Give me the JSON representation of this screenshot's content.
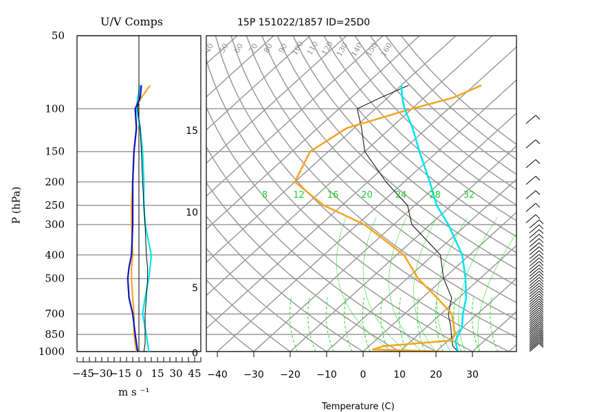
{
  "header": {
    "title": "15P 151022/1857 ID=25D0",
    "left_panel_title": "U/V Comps"
  },
  "chart_data": [
    {
      "type": "line",
      "title": "U/V Comps",
      "xlabel": "m s ⁻¹",
      "ylabel": "P (hPa)",
      "xlim": [
        -50,
        50
      ],
      "ylim": [
        1000,
        50
      ],
      "y_scale": "log",
      "x_tick_labels": [
        "-45",
        "-30",
        "-15",
        "0",
        "15",
        "30",
        "45"
      ],
      "y_tick_labels": [
        "50",
        "100",
        "150",
        "200",
        "250",
        "300",
        "400",
        "500",
        "700",
        "850",
        "1000"
      ],
      "series": [
        {
          "color": "#f5a623",
          "p": [
            1000,
            925,
            850,
            700,
            600,
            500,
            450,
            400,
            300,
            250,
            200,
            150,
            120,
            100,
            90,
            80
          ],
          "values": [
            -2,
            -3,
            -4,
            -4,
            -5,
            -6,
            -6,
            -5,
            -6,
            -6,
            -5,
            -4,
            -2,
            -3,
            2,
            9
          ]
        },
        {
          "color": "#00e5ee",
          "p": [
            1000,
            925,
            850,
            700,
            600,
            500,
            450,
            400,
            300,
            250,
            200,
            150,
            120,
            100,
            90,
            80
          ],
          "values": [
            8,
            7,
            6,
            3,
            5,
            8,
            9,
            10,
            5,
            4,
            4,
            3,
            1,
            -2,
            -1,
            1
          ]
        },
        {
          "color": "#000000",
          "p": [
            1000,
            925,
            850,
            700,
            600,
            500,
            450,
            400,
            300,
            250,
            200,
            150,
            120,
            100,
            90,
            80
          ],
          "values": [
            4,
            5,
            5,
            5,
            6,
            7,
            7,
            6,
            5,
            4,
            3,
            2,
            1,
            -1,
            0,
            0
          ]
        },
        {
          "color": "#1010c0",
          "p": [
            1000,
            925,
            850,
            700,
            600,
            500,
            450,
            400,
            300,
            250,
            200,
            150,
            120,
            100,
            90,
            80
          ],
          "values": [
            -1,
            -2,
            -3,
            -5,
            -8,
            -9,
            -8,
            -6,
            -5,
            -5,
            -5,
            -4,
            -2,
            -3,
            1,
            2
          ]
        }
      ]
    },
    {
      "type": "line",
      "title": "15P 151022/1857 ID=25D0",
      "xlabel": "Temperature (C)",
      "xlim": [
        -40,
        40
      ],
      "x_tick_labels": [
        "-40",
        "-30",
        "-20",
        "-10",
        "0",
        "10",
        "20",
        "30"
      ],
      "height_km_labels": [
        "0",
        "5",
        "10",
        "15"
      ],
      "mixing_ratio_labels": [
        "8",
        "12",
        "16",
        "20",
        "24",
        "28",
        "32"
      ],
      "potential_temperature_labels": [
        "40",
        "50",
        "60",
        "70",
        "80",
        "90",
        "100",
        "110",
        "120",
        "130",
        "140",
        "150",
        "160"
      ],
      "series": [
        {
          "name": "Temperature",
          "color": "#000000",
          "p": [
            1000,
            950,
            900,
            850,
            800,
            700,
            600,
            500,
            400,
            300,
            250,
            200,
            150,
            120,
            100,
            90,
            80
          ],
          "values": [
            26,
            23,
            21,
            19,
            17,
            12,
            8,
            0,
            -8,
            -25,
            -32,
            -45,
            -60,
            -68,
            -75,
            -72,
            -68
          ]
        },
        {
          "name": "Dewpoint",
          "color": "#f5a623",
          "p": [
            1000,
            980,
            950,
            900,
            850,
            700,
            600,
            500,
            400,
            300,
            250,
            200,
            150,
            120,
            100,
            90,
            80
          ],
          "values": [
            22,
            2,
            4,
            21,
            20,
            13,
            4,
            -7,
            -18,
            -38,
            -55,
            -70,
            -75,
            -72,
            -60,
            -52,
            -48
          ]
        },
        {
          "name": "Parcel",
          "color": "#00e5ee",
          "p": [
            1000,
            950,
            900,
            850,
            800,
            700,
            600,
            500,
            400,
            300,
            250,
            200,
            150,
            120,
            100,
            90,
            80
          ],
          "values": [
            26,
            24,
            22,
            21,
            20,
            16,
            12,
            6,
            -2,
            -15,
            -24,
            -33,
            -45,
            -54,
            -62,
            -66,
            -70
          ]
        }
      ]
    }
  ]
}
